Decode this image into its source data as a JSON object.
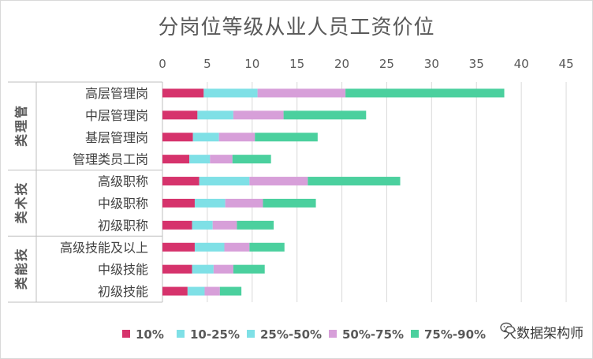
{
  "chart_data": {
    "type": "bar",
    "orientation": "horizontal",
    "stacked": true,
    "title": "分岗位等级从业人员工资价位",
    "x_axis_position": "top",
    "xlim": [
      0,
      45
    ],
    "xticks": [
      0,
      5,
      10,
      15,
      20,
      25,
      30,
      35,
      40,
      45
    ],
    "grid": true,
    "legend_position": "bottom",
    "groups": [
      {
        "name": "管理类",
        "categories": [
          "高层管理岗",
          "中层管理岗",
          "基层管理岗",
          "管理类员工岗"
        ]
      },
      {
        "name": "技术类",
        "categories": [
          "高级职称",
          "中级职称",
          "初级职称"
        ]
      },
      {
        "name": "技能类",
        "categories": [
          "高级技能及以上",
          "中级技能",
          "初级技能"
        ]
      }
    ],
    "categories": [
      "高层管理岗",
      "中层管理岗",
      "基层管理岗",
      "管理类员工岗",
      "高级职称",
      "中级职称",
      "初级职称",
      "高级技能及以上",
      "中级技能",
      "初级技能"
    ],
    "series": [
      {
        "name": "10%",
        "color": "#d6336c",
        "values": [
          4.6,
          3.9,
          3.4,
          3.0,
          4.1,
          3.6,
          3.3,
          3.6,
          3.3,
          2.8
        ]
      },
      {
        "name": "10-25%",
        "color": "#7fe0e6",
        "values": [
          6.0,
          4.0,
          2.9,
          2.3,
          5.6,
          3.4,
          2.3,
          3.3,
          2.4,
          1.9
        ]
      },
      {
        "name": "25%-50%",
        "color": "#7fe0e6",
        "values": [
          0,
          0,
          0,
          0,
          0,
          0,
          0,
          0,
          0,
          0
        ]
      },
      {
        "name": "50%-75%",
        "color": "#d79fd9",
        "values": [
          9.8,
          5.6,
          4.0,
          2.5,
          6.5,
          4.2,
          2.7,
          2.8,
          2.2,
          1.7
        ]
      },
      {
        "name": "75%-90%",
        "color": "#4bd09e",
        "values": [
          17.7,
          9.2,
          7.0,
          4.3,
          10.3,
          5.9,
          4.1,
          3.9,
          3.5,
          2.4
        ]
      }
    ]
  },
  "watermark": {
    "text": "大数据架构师"
  }
}
